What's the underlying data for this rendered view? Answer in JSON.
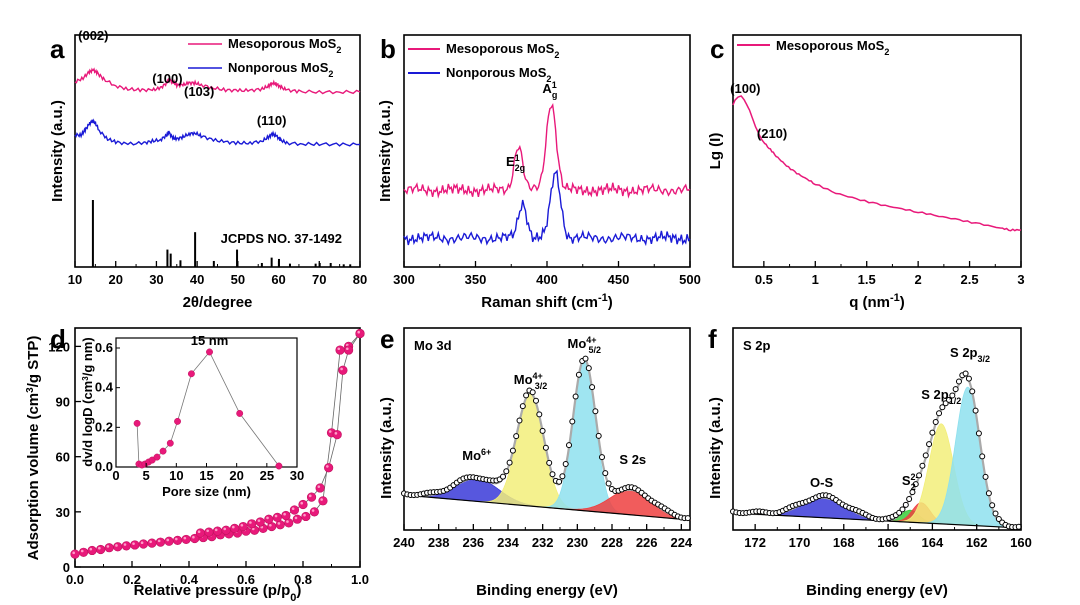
{
  "figure": {
    "panel_labels": [
      "a",
      "b",
      "c",
      "d",
      "e",
      "f"
    ]
  },
  "colors": {
    "mesoporous": "#e8197a",
    "nonporous": "#1a1ad6",
    "marker": "#e8197a",
    "fill_blue": "#3a3ad8",
    "fill_yellow": "#f2ee7a",
    "fill_cyan": "#8ee0ee",
    "fill_red": "#ee4040",
    "fill_green": "#3acc3a",
    "envelope": "#aaaaaa"
  },
  "chart_data": [
    {
      "panel": "a",
      "type": "line",
      "xlabel": "2θ/degree",
      "ylabel": "Intensity (a.u.)",
      "xlim": [
        10,
        80
      ],
      "xticks": [
        10,
        20,
        30,
        40,
        50,
        60,
        70,
        80
      ],
      "series": [
        {
          "name_main": "Mesoporous MoS",
          "name_sub": "2",
          "color": "#e8197a",
          "points": [
            [
              10,
              82
            ],
            [
              12,
              78
            ],
            [
              13.5,
              72
            ],
            [
              14.5,
              70
            ],
            [
              15.5,
              73
            ],
            [
              17,
              79
            ],
            [
              20,
              86
            ],
            [
              23,
              89
            ],
            [
              26,
              90
            ],
            [
              29,
              90
            ],
            [
              31,
              88
            ],
            [
              32.5,
              83
            ],
            [
              33,
              79
            ],
            [
              34,
              82
            ],
            [
              35,
              85
            ],
            [
              36.5,
              85
            ],
            [
              38,
              83
            ],
            [
              39.5,
              83
            ],
            [
              41,
              85
            ],
            [
              44,
              88
            ],
            [
              47,
              90
            ],
            [
              50,
              90.5
            ],
            [
              53,
              90.5
            ],
            [
              56,
              89
            ],
            [
              57.5,
              86
            ],
            [
              58.5,
              83
            ],
            [
              59.5,
              84
            ],
            [
              60.5,
              87
            ],
            [
              62,
              90
            ],
            [
              65,
              91.5
            ],
            [
              70,
              92
            ],
            [
              75,
              92
            ],
            [
              80,
              92
            ]
          ]
        },
        {
          "name_main": "Nonporous  MoS",
          "name_sub": "2",
          "color": "#1a1ad6",
          "points": [
            [
              10,
              135
            ],
            [
              11.5,
              135
            ],
            [
              12.5,
              130
            ],
            [
              13.5,
              124
            ],
            [
              14.2,
              121
            ],
            [
              15,
              123
            ],
            [
              16,
              131
            ],
            [
              18,
              139
            ],
            [
              20,
              142
            ],
            [
              23,
              144
            ],
            [
              27,
              143
            ],
            [
              29,
              141
            ],
            [
              31,
              140
            ],
            [
              32.5,
              135
            ],
            [
              33,
              132
            ],
            [
              34,
              138
            ],
            [
              35,
              139
            ],
            [
              36.5,
              137
            ],
            [
              38,
              134
            ],
            [
              39.5,
              133
            ],
            [
              41,
              136
            ],
            [
              44,
              140
            ],
            [
              47,
              142
            ],
            [
              50,
              143
            ],
            [
              53,
              143
            ],
            [
              56,
              141
            ],
            [
              57.5,
              137
            ],
            [
              58.5,
              134
            ],
            [
              59.5,
              136
            ],
            [
              60.5,
              140
            ],
            [
              62,
              143
            ],
            [
              66,
              144
            ],
            [
              70,
              144
            ],
            [
              75,
              144.5
            ],
            [
              80,
              144.5
            ]
          ]
        }
      ],
      "reference": {
        "label": "JCPDS NO. 37-1492",
        "lines": [
          [
            14.4,
            1.0
          ],
          [
            32.7,
            0.26
          ],
          [
            33.5,
            0.2
          ],
          [
            35.9,
            0.1
          ],
          [
            39.5,
            0.52
          ],
          [
            44.1,
            0.09
          ],
          [
            49.8,
            0.26
          ],
          [
            55.9,
            0.06
          ],
          [
            58.3,
            0.14
          ],
          [
            60.1,
            0.12
          ],
          [
            62.8,
            0.05
          ],
          [
            69.1,
            0.05
          ],
          [
            70.1,
            0.06
          ],
          [
            72.8,
            0.06
          ],
          [
            76.0,
            0.04
          ],
          [
            77.6,
            0.04
          ]
        ]
      },
      "annotations": [
        {
          "text": "(002)",
          "x": 14.5,
          "y": 40
        },
        {
          "text": "(100)",
          "x": 32.7,
          "y": 83
        },
        {
          "text": "(103)",
          "x": 40.5,
          "y": 96
        },
        {
          "text": "(110)",
          "x": 58.3,
          "y": 125
        }
      ]
    },
    {
      "panel": "b",
      "type": "line",
      "xlabel": "Raman shift (cm",
      "xlabel_sup": "-1",
      "xlabel_tail": ")",
      "ylabel": "Intensity (a.u.)",
      "xlim": [
        300,
        500
      ],
      "xticks": [
        300,
        350,
        400,
        450,
        500
      ],
      "series": [
        {
          "name_main": "Mesoporous MoS",
          "name_sub": "2",
          "color": "#e8197a",
          "base": 190,
          "amp": 5,
          "seed": 3,
          "peaks": [
            [
              380,
              45,
              3
            ],
            [
              403,
              88,
              3.5
            ]
          ]
        },
        {
          "name_main": "Nonporous   MoS",
          "name_sub": "2",
          "color": "#1a1ad6",
          "base": 238,
          "amp": 5,
          "seed": 7,
          "peaks": [
            [
              383,
              35,
              3
            ],
            [
              406,
              65,
              3.5
            ]
          ]
        }
      ],
      "annotations": [
        {
          "main": "E",
          "sup": "1",
          "sub": "2g",
          "x": 378,
          "y": 166
        },
        {
          "main": "A",
          "sup": "1",
          "sub": "g",
          "x": 402,
          "y": 93
        }
      ]
    },
    {
      "panel": "c",
      "type": "line",
      "xlabel": "q (nm",
      "xlabel_sup": "-1",
      "xlabel_tail": ")",
      "ylabel": "Lg (I)",
      "xlim": [
        0.2,
        3.0
      ],
      "xticks": [
        0.5,
        1.0,
        1.5,
        2.0,
        2.5,
        3.0
      ],
      "series": [
        {
          "name_main": "Mesoporous MoS",
          "name_sub": "2",
          "color": "#e8197a",
          "points": [
            [
              0.2,
              105
            ],
            [
              0.22,
              100
            ],
            [
              0.25,
              97
            ],
            [
              0.28,
              96
            ],
            [
              0.31,
              100
            ],
            [
              0.36,
              110
            ],
            [
              0.42,
              127
            ],
            [
              0.48,
              140
            ],
            [
              0.55,
              148
            ],
            [
              0.62,
              156
            ],
            [
              0.7,
              164
            ],
            [
              0.8,
              172
            ],
            [
              0.9,
              178
            ],
            [
              1.0,
              184
            ],
            [
              1.2,
              193
            ],
            [
              1.4,
              199
            ],
            [
              1.6,
              204
            ],
            [
              1.8,
              208
            ],
            [
              2.0,
              212
            ],
            [
              2.2,
              216
            ],
            [
              2.4,
              220
            ],
            [
              2.6,
              224
            ],
            [
              2.8,
              228
            ],
            [
              2.9,
              230
            ],
            [
              3.0,
              230
            ]
          ]
        }
      ],
      "annotations": [
        {
          "text": "(100)",
          "x": 0.32,
          "y": 93
        },
        {
          "text": "(210)",
          "x": 0.58,
          "y": 138
        }
      ]
    },
    {
      "panel": "d",
      "type": "scatter",
      "xlabel": "Relative pressure (p/p",
      "xlabel_sub": "0",
      "xlabel_tail": ")",
      "ylabel": "Adsorption volume (cm",
      "ylabel_sup": "3",
      "ylabel_tail": "/g STP)",
      "xlim": [
        0,
        1.0
      ],
      "ylim": [
        0,
        130
      ],
      "xticks": [
        0.0,
        0.2,
        0.4,
        0.6,
        0.8,
        1.0
      ],
      "yticks": [
        0,
        30,
        60,
        90,
        120
      ],
      "adsorption": [
        [
          0.0,
          7
        ],
        [
          0.03,
          8
        ],
        [
          0.06,
          9
        ],
        [
          0.09,
          9.5
        ],
        [
          0.12,
          10.5
        ],
        [
          0.15,
          11
        ],
        [
          0.18,
          11.5
        ],
        [
          0.21,
          12
        ],
        [
          0.24,
          12.5
        ],
        [
          0.27,
          13
        ],
        [
          0.3,
          13.5
        ],
        [
          0.33,
          14
        ],
        [
          0.36,
          14.5
        ],
        [
          0.39,
          15
        ],
        [
          0.42,
          15.5
        ],
        [
          0.45,
          16
        ],
        [
          0.48,
          16.5
        ],
        [
          0.51,
          17.5
        ],
        [
          0.54,
          18
        ],
        [
          0.57,
          18.5
        ],
        [
          0.6,
          19.5
        ],
        [
          0.63,
          20
        ],
        [
          0.66,
          21
        ],
        [
          0.69,
          22
        ],
        [
          0.72,
          23
        ],
        [
          0.75,
          24
        ],
        [
          0.78,
          26
        ],
        [
          0.81,
          27.5
        ],
        [
          0.84,
          30
        ],
        [
          0.87,
          36
        ],
        [
          0.9,
          73
        ],
        [
          0.93,
          118
        ],
        [
          0.96,
          120
        ],
        [
          1.0,
          127
        ]
      ],
      "desorption": [
        [
          1.0,
          127
        ],
        [
          0.96,
          118
        ],
        [
          0.94,
          107
        ],
        [
          0.92,
          72
        ],
        [
          0.89,
          54
        ],
        [
          0.86,
          43
        ],
        [
          0.83,
          38
        ],
        [
          0.8,
          34
        ],
        [
          0.77,
          31
        ],
        [
          0.74,
          28
        ],
        [
          0.71,
          27
        ],
        [
          0.68,
          26
        ],
        [
          0.65,
          24.5
        ],
        [
          0.62,
          23.5
        ],
        [
          0.59,
          22
        ],
        [
          0.56,
          21
        ],
        [
          0.53,
          20
        ],
        [
          0.5,
          19.5
        ],
        [
          0.47,
          19
        ],
        [
          0.44,
          18.5
        ]
      ],
      "inset": {
        "xlabel": "Pore size (nm)",
        "ylabel_main": "dv/d logD (cm",
        "ylabel_sup": "3",
        "ylabel_tail": "/g nm)",
        "xlim": [
          0,
          30
        ],
        "ylim": [
          0,
          0.6
        ],
        "xticks": [
          0,
          5,
          10,
          15,
          20,
          25,
          30
        ],
        "yticks": [
          0.0,
          0.2,
          0.4,
          0.6
        ],
        "annotation": "15 nm",
        "points": [
          [
            3.5,
            0.22
          ],
          [
            3.8,
            0.015
          ],
          [
            4.3,
            0.01
          ],
          [
            4.8,
            0.015
          ],
          [
            5.4,
            0.025
          ],
          [
            6.0,
            0.035
          ],
          [
            6.8,
            0.05
          ],
          [
            7.8,
            0.08
          ],
          [
            9.0,
            0.12
          ],
          [
            10.2,
            0.23
          ],
          [
            12.5,
            0.47
          ],
          [
            15.5,
            0.58
          ],
          [
            20.5,
            0.27
          ],
          [
            27.0,
            0.005
          ]
        ]
      }
    },
    {
      "panel": "e",
      "type": "area",
      "title": "Mo 3d",
      "xlabel": "Binding energy (eV)",
      "ylabel": "Intensity (a.u.)",
      "xlim": [
        240,
        223.5
      ],
      "xticks": [
        240,
        238,
        236,
        234,
        232,
        230,
        228,
        226,
        224
      ],
      "background": {
        "left": 495,
        "right": 520
      },
      "components": [
        {
          "name": "Mo6+",
          "center": 235.8,
          "sigma": 1.25,
          "height": 23,
          "color": "#3a3ad8"
        },
        {
          "name": "Mo4+ 3d3/2",
          "center": 232.7,
          "sigma": 0.78,
          "height": 112,
          "color": "#f2ee7a"
        },
        {
          "name": "Mo4+ 3d5/2",
          "center": 229.6,
          "sigma": 0.65,
          "height": 150,
          "color": "#8ee0ee"
        },
        {
          "name": "S 2s",
          "center": 226.9,
          "sigma": 1.2,
          "height": 25,
          "color": "#ee4040"
        }
      ],
      "annotations": [
        {
          "main": "Mo",
          "sup": "6+",
          "x": 235.8,
          "y": 460
        },
        {
          "main": "Mo",
          "sup": "4+",
          "tail": " 3d",
          "sub": "3/2",
          "x": 232.7,
          "y": 384
        },
        {
          "main": "Mo",
          "sup": "4+",
          "tail": " 3d",
          "sub": "5/2",
          "x": 229.6,
          "y": 348
        },
        {
          "main": "S 2s",
          "x": 226.8,
          "y": 464
        }
      ]
    },
    {
      "panel": "f",
      "type": "area",
      "title": "S 2p",
      "xlabel": "Binding energy (eV)",
      "ylabel": "Intensity (a.u.)",
      "xlim": [
        173,
        160
      ],
      "xticks": [
        172,
        170,
        168,
        166,
        164,
        162,
        160
      ],
      "background": {
        "left": 513,
        "right": 528
      },
      "components": [
        {
          "name": "O-S",
          "center": 168.9,
          "sigma": 1.0,
          "height": 20,
          "color": "#3a3ad8"
        },
        {
          "name": "S2 2-",
          "center": 165.0,
          "sigma": 0.4,
          "height": 12,
          "color": "#3acc3a"
        },
        {
          "name": "S2 2- b",
          "center": 164.5,
          "sigma": 0.4,
          "height": 20,
          "color": "#ee4040"
        },
        {
          "name": "S 2p1/2",
          "center": 163.6,
          "sigma": 0.55,
          "height": 100,
          "color": "#f2ee7a"
        },
        {
          "name": "S 2p3/2",
          "center": 162.4,
          "sigma": 0.55,
          "height": 138,
          "color": "#8ee0ee"
        }
      ],
      "annotations": [
        {
          "main": "O-S",
          "x": 169.0,
          "y": 487
        },
        {
          "main": "S",
          "sub": "2",
          "sup": "2-",
          "x": 165.0,
          "y": 485
        },
        {
          "main": "S 2p",
          "sub": "1/2",
          "x": 163.6,
          "y": 399
        },
        {
          "main": "S 2p",
          "sub": "3/2",
          "x": 162.3,
          "y": 357
        }
      ]
    }
  ]
}
